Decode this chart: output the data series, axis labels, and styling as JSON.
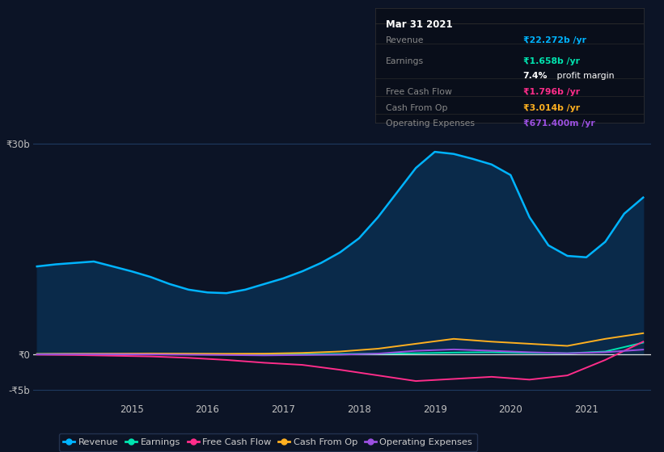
{
  "background_color": "#0c1426",
  "plot_bg_color": "#0c1426",
  "grid_color": "#1a2d4a",
  "zero_line_color": "#e0e0e0",
  "title_box": {
    "date": "Mar 31 2021",
    "revenue_label": "Revenue",
    "revenue_value": "₹22.272b /yr",
    "earnings_label": "Earnings",
    "earnings_value": "₹1.658b /yr",
    "profit_margin": "7.4% profit margin",
    "fcf_label": "Free Cash Flow",
    "fcf_value": "₹1.796b /yr",
    "cashfromop_label": "Cash From Op",
    "cashfromop_value": "₹3.014b /yr",
    "opex_label": "Operating Expenses",
    "opex_value": "₹671.400m /yr"
  },
  "ylim": [
    -6500000000.0,
    34000000000.0
  ],
  "ytick_positions": [
    -5000000000.0,
    0,
    30000000000.0
  ],
  "ytick_labels": [
    "-₹5b",
    "₹0",
    "₹30b"
  ],
  "xlim": [
    2013.7,
    2021.85
  ],
  "x_years": [
    2015,
    2016,
    2017,
    2018,
    2019,
    2020,
    2021
  ],
  "revenue_color": "#00b4ff",
  "revenue_fill": "#0a2a4a",
  "revenue_label": "Revenue",
  "revenue_x": [
    2013.75,
    2014.0,
    2014.25,
    2014.5,
    2014.75,
    2015.0,
    2015.25,
    2015.5,
    2015.75,
    2016.0,
    2016.25,
    2016.5,
    2016.75,
    2017.0,
    2017.25,
    2017.5,
    2017.75,
    2018.0,
    2018.25,
    2018.5,
    2018.75,
    2019.0,
    2019.25,
    2019.5,
    2019.75,
    2020.0,
    2020.25,
    2020.5,
    2020.75,
    2021.0,
    2021.25,
    2021.5,
    2021.75
  ],
  "revenue_y": [
    12500000000.0,
    12800000000.0,
    13000000000.0,
    13200000000.0,
    12500000000.0,
    11800000000.0,
    11000000000.0,
    10000000000.0,
    9200000000.0,
    8800000000.0,
    8700000000.0,
    9200000000.0,
    10000000000.0,
    10800000000.0,
    11800000000.0,
    13000000000.0,
    14500000000.0,
    16500000000.0,
    19500000000.0,
    23000000000.0,
    26500000000.0,
    28800000000.0,
    28500000000.0,
    27800000000.0,
    27000000000.0,
    25500000000.0,
    19500000000.0,
    15500000000.0,
    14000000000.0,
    13800000000.0,
    16000000000.0,
    20000000000.0,
    22300000000.0
  ],
  "earnings_color": "#00e5b0",
  "earnings_label": "Earnings",
  "earnings_x": [
    2013.75,
    2014.25,
    2014.75,
    2015.25,
    2015.75,
    2016.25,
    2016.75,
    2017.25,
    2017.75,
    2018.25,
    2018.75,
    2019.25,
    2019.75,
    2020.25,
    2020.75,
    2021.25,
    2021.75
  ],
  "earnings_y": [
    50000000.0,
    80000000.0,
    60000000.0,
    40000000.0,
    20000000.0,
    0.0,
    -50000000.0,
    20000000.0,
    50000000.0,
    80000000.0,
    150000000.0,
    250000000.0,
    300000000.0,
    200000000.0,
    150000000.0,
    400000000.0,
    1660000000.0
  ],
  "fcf_color": "#ff2d8a",
  "fcf_label": "Free Cash Flow",
  "fcf_x": [
    2013.75,
    2014.25,
    2014.75,
    2015.25,
    2015.75,
    2016.25,
    2016.75,
    2017.25,
    2017.75,
    2018.25,
    2018.75,
    2019.25,
    2019.75,
    2020.25,
    2020.75,
    2021.25,
    2021.75
  ],
  "fcf_y": [
    -50000000.0,
    -100000000.0,
    -200000000.0,
    -300000000.0,
    -500000000.0,
    -800000000.0,
    -1200000000.0,
    -1500000000.0,
    -2200000000.0,
    -3000000000.0,
    -3800000000.0,
    -3500000000.0,
    -3200000000.0,
    -3600000000.0,
    -3000000000.0,
    -800000000.0,
    1800000000.0
  ],
  "cashop_color": "#ffb020",
  "cashop_label": "Cash From Op",
  "cashop_x": [
    2013.75,
    2014.25,
    2014.75,
    2015.25,
    2015.75,
    2016.25,
    2016.75,
    2017.25,
    2017.75,
    2018.25,
    2018.75,
    2019.25,
    2019.75,
    2020.25,
    2020.75,
    2021.25,
    2021.75
  ],
  "cashop_y": [
    50000000.0,
    80000000.0,
    100000000.0,
    120000000.0,
    100000000.0,
    80000000.0,
    100000000.0,
    200000000.0,
    400000000.0,
    800000000.0,
    1500000000.0,
    2200000000.0,
    1800000000.0,
    1500000000.0,
    1200000000.0,
    2200000000.0,
    3000000000.0
  ],
  "opex_color": "#9b50e0",
  "opex_label": "Operating Expenses",
  "opex_x": [
    2013.75,
    2014.25,
    2014.75,
    2015.25,
    2015.75,
    2016.25,
    2016.75,
    2017.25,
    2017.75,
    2018.25,
    2018.75,
    2019.25,
    2019.75,
    2020.25,
    2020.75,
    2021.25,
    2021.75
  ],
  "opex_y": [
    0.0,
    20000000.0,
    20000000.0,
    0.0,
    -50000000.0,
    -100000000.0,
    -150000000.0,
    -100000000.0,
    -50000000.0,
    100000000.0,
    500000000.0,
    700000000.0,
    500000000.0,
    300000000.0,
    150000000.0,
    300000000.0,
    670000000.0
  ]
}
